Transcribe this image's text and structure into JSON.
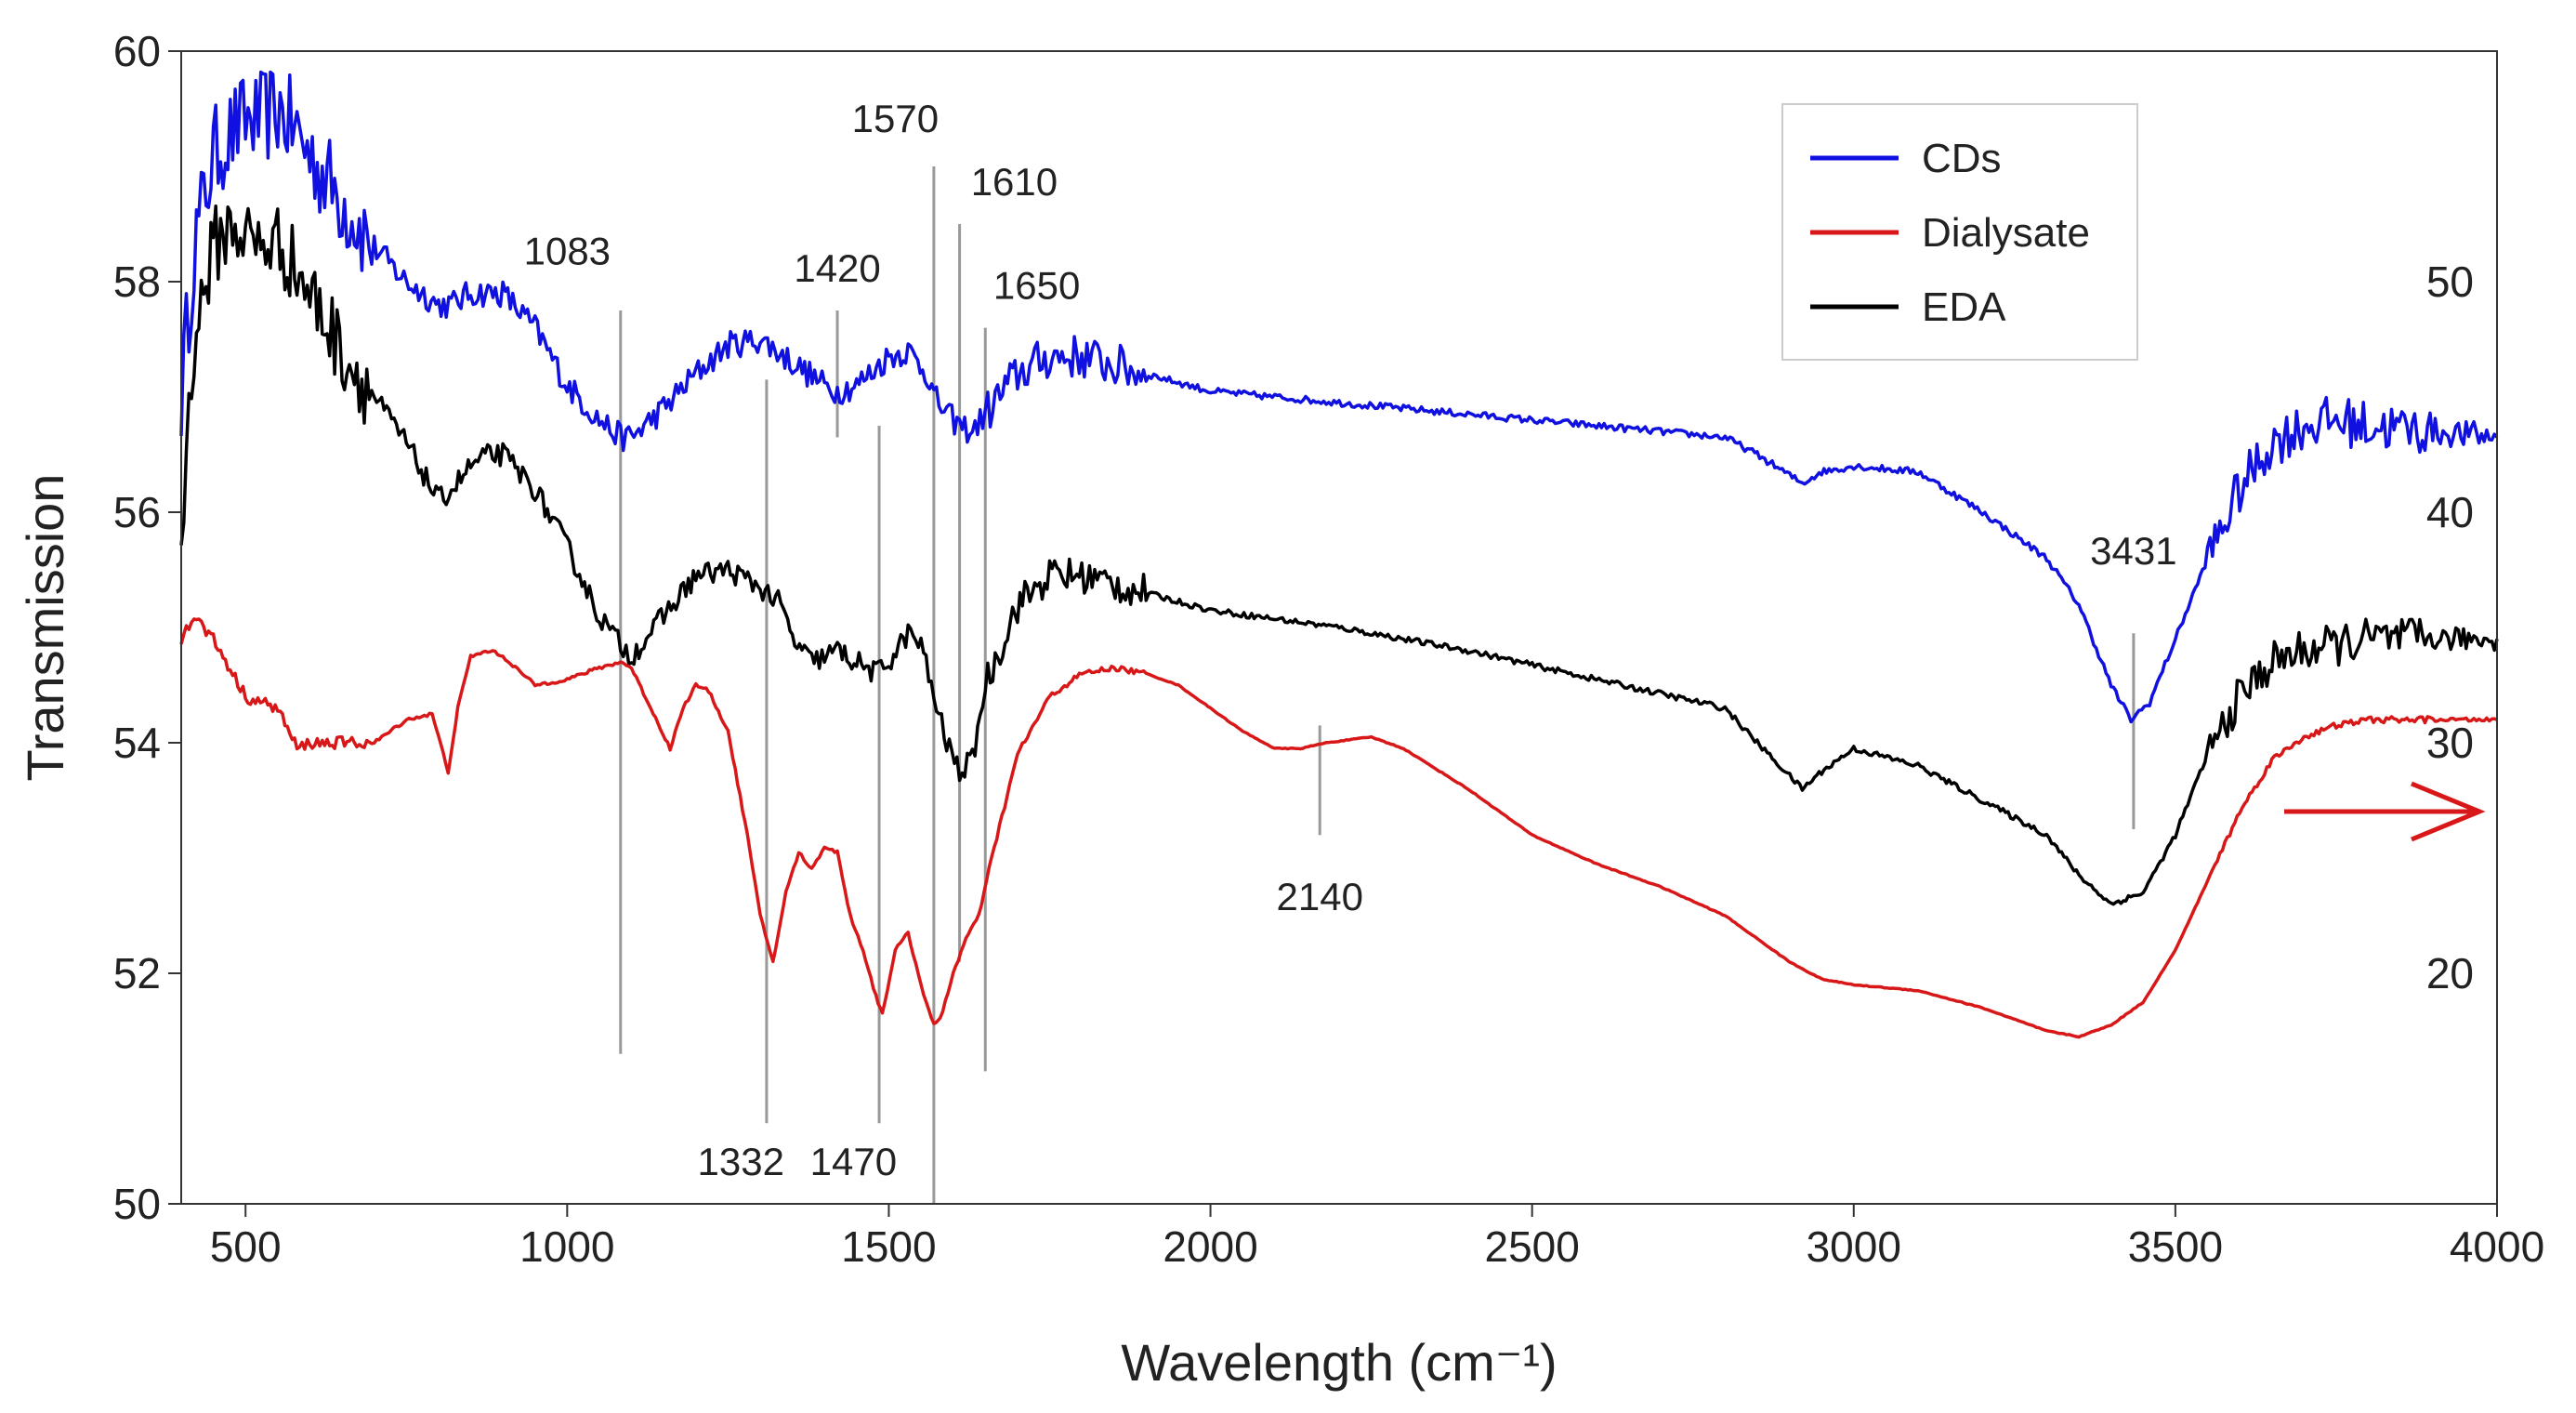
{
  "chart_data": {
    "type": "line",
    "title": "",
    "xlabel": "Wavelength (cm⁻¹)",
    "ylabel": "Transmission",
    "xlim": [
      400,
      4000
    ],
    "ylim": [
      50,
      60
    ],
    "y2lim": [
      10,
      60
    ],
    "x_ticks": [
      500,
      1000,
      1500,
      2000,
      2500,
      3000,
      3500,
      4000
    ],
    "y_ticks": [
      50,
      52,
      54,
      56,
      58,
      60
    ],
    "y2_ticks": [
      20,
      30,
      40,
      50
    ],
    "grid": false,
    "legend_position": "top-right",
    "legend": [
      "CDs",
      "Dialysate",
      "EDA"
    ],
    "colors": {
      "CDs": "#1010e0",
      "Dialysate": "#d81818",
      "EDA": "#000000",
      "marker": "#999999",
      "right_axis_arrow": "#d81818"
    },
    "series": [
      {
        "name": "CDs",
        "axis": "left",
        "noise": 0.12,
        "x": [
          400,
          420,
          450,
          480,
          500,
          520,
          550,
          580,
          600,
          650,
          700,
          750,
          800,
          820,
          850,
          900,
          950,
          1000,
          1050,
          1083,
          1100,
          1150,
          1200,
          1250,
          1300,
          1350,
          1400,
          1420,
          1450,
          1500,
          1530,
          1560,
          1570,
          1590,
          1610,
          1630,
          1650,
          1700,
          1750,
          1800,
          1900,
          2000,
          2200,
          2400,
          2600,
          2800,
          2850,
          2920,
          2950,
          3000,
          3100,
          3200,
          3300,
          3350,
          3400,
          3431,
          3460,
          3500,
          3550,
          3600,
          3650,
          3700,
          3750,
          3800,
          3900,
          4000
        ],
        "y": [
          57.0,
          58.3,
          59.1,
          59.3,
          59.4,
          59.4,
          59.5,
          59.3,
          59.1,
          58.7,
          58.3,
          58.0,
          57.8,
          57.8,
          57.9,
          57.9,
          57.6,
          57.1,
          56.8,
          56.65,
          56.65,
          56.9,
          57.2,
          57.45,
          57.5,
          57.3,
          57.1,
          57.05,
          57.1,
          57.35,
          57.4,
          57.2,
          57.0,
          56.85,
          56.75,
          56.7,
          56.85,
          57.2,
          57.35,
          57.35,
          57.2,
          57.05,
          56.95,
          56.85,
          56.75,
          56.65,
          56.5,
          56.25,
          56.35,
          56.4,
          56.35,
          56.0,
          55.6,
          55.2,
          54.5,
          54.2,
          54.35,
          54.9,
          55.6,
          56.2,
          56.6,
          56.75,
          56.8,
          56.75,
          56.7,
          56.65
        ]
      },
      {
        "name": "EDA",
        "axis": "left",
        "noise": 0.1,
        "x": [
          400,
          420,
          450,
          480,
          500,
          520,
          550,
          580,
          600,
          650,
          700,
          750,
          800,
          820,
          850,
          880,
          900,
          950,
          1000,
          1050,
          1083,
          1100,
          1150,
          1200,
          1250,
          1300,
          1332,
          1350,
          1380,
          1400,
          1420,
          1450,
          1480,
          1500,
          1530,
          1550,
          1570,
          1590,
          1610,
          1630,
          1650,
          1700,
          1750,
          1800,
          1900,
          2000,
          2200,
          2400,
          2600,
          2800,
          2850,
          2920,
          2950,
          3000,
          3100,
          3200,
          3300,
          3350,
          3400,
          3450,
          3500,
          3550,
          3600,
          3650,
          3700,
          3750,
          3800,
          3900,
          4000
        ],
        "y": [
          55.8,
          57.5,
          58.3,
          58.5,
          58.4,
          58.3,
          58.35,
          58.1,
          57.9,
          57.4,
          57.0,
          56.6,
          56.1,
          56.2,
          56.4,
          56.5,
          56.5,
          56.2,
          55.7,
          55.1,
          54.85,
          54.75,
          55.1,
          55.45,
          55.5,
          55.35,
          55.2,
          54.9,
          54.7,
          54.75,
          54.8,
          54.7,
          54.6,
          54.7,
          54.95,
          54.85,
          54.4,
          54.0,
          53.75,
          53.85,
          54.5,
          55.2,
          55.45,
          55.45,
          55.3,
          55.15,
          55.0,
          54.8,
          54.55,
          54.3,
          54.0,
          53.6,
          53.75,
          53.95,
          53.8,
          53.5,
          53.2,
          52.85,
          52.6,
          52.7,
          53.2,
          53.9,
          54.4,
          54.7,
          54.8,
          54.85,
          54.9,
          54.9,
          54.9
        ]
      },
      {
        "name": "Dialysate",
        "axis": "left",
        "noise": 0.015,
        "x": [
          400,
          420,
          450,
          480,
          500,
          550,
          580,
          600,
          650,
          700,
          750,
          790,
          800,
          815,
          830,
          850,
          880,
          900,
          950,
          1000,
          1050,
          1083,
          1100,
          1130,
          1160,
          1180,
          1200,
          1220,
          1250,
          1280,
          1300,
          1320,
          1340,
          1360,
          1380,
          1400,
          1420,
          1440,
          1460,
          1480,
          1490,
          1510,
          1530,
          1550,
          1570,
          1580,
          1600,
          1620,
          1640,
          1660,
          1700,
          1750,
          1800,
          1850,
          1900,
          1950,
          2000,
          2050,
          2100,
          2140,
          2180,
          2250,
          2300,
          2400,
          2500,
          2600,
          2700,
          2800,
          2850,
          2900,
          2950,
          3000,
          3100,
          3200,
          3300,
          3350,
          3400,
          3450,
          3500,
          3550,
          3600,
          3650,
          3700,
          3750,
          3800,
          3900,
          4000
        ],
        "y": [
          54.9,
          55.1,
          54.9,
          54.6,
          54.4,
          54.3,
          53.95,
          54.0,
          54.0,
          54.0,
          54.2,
          54.25,
          54.05,
          53.75,
          54.3,
          54.75,
          54.8,
          54.75,
          54.5,
          54.55,
          54.65,
          54.7,
          54.65,
          54.3,
          53.95,
          54.3,
          54.5,
          54.45,
          54.1,
          53.2,
          52.5,
          52.1,
          52.7,
          53.05,
          52.9,
          53.1,
          53.05,
          52.5,
          52.2,
          51.8,
          51.65,
          52.2,
          52.35,
          51.9,
          51.55,
          51.6,
          52.0,
          52.3,
          52.5,
          53.0,
          53.9,
          54.4,
          54.6,
          54.65,
          54.6,
          54.5,
          54.3,
          54.1,
          53.95,
          53.95,
          54.0,
          54.05,
          53.95,
          53.6,
          53.2,
          52.95,
          52.75,
          52.5,
          52.3,
          52.1,
          51.95,
          51.9,
          51.85,
          51.7,
          51.5,
          51.45,
          51.55,
          51.75,
          52.2,
          52.8,
          53.4,
          53.85,
          54.05,
          54.15,
          54.2,
          54.2,
          54.2
        ]
      }
    ],
    "annotations": [
      {
        "text": "1083",
        "x": 1083,
        "y1": 51.3,
        "y2": 57.75,
        "label_y": 58.15,
        "label_x": 1000
      },
      {
        "text": "1332",
        "x": 1310,
        "y1": 50.7,
        "y2": 57.15,
        "label_y": 50.25,
        "label_x": 1270
      },
      {
        "text": "1420",
        "x": 1420,
        "y1": 56.65,
        "y2": 57.75,
        "label_y": 58.0,
        "label_x": 1420
      },
      {
        "text": "1470",
        "x": 1485,
        "y1": 50.7,
        "y2": 56.75,
        "label_y": 50.25,
        "label_x": 1445
      },
      {
        "text": "1570",
        "x": 1570,
        "y1": 50.0,
        "y2": 59.0,
        "label_y": 59.3,
        "label_x": 1510
      },
      {
        "text": "1610",
        "x": 1610,
        "y1": 52.1,
        "y2": 58.5,
        "label_y": 58.75,
        "label_x": 1695
      },
      {
        "text": "1650",
        "x": 1650,
        "y1": 51.15,
        "y2": 57.6,
        "label_y": 57.85,
        "label_x": 1730
      },
      {
        "text": "2140",
        "x": 2170,
        "y1": 53.2,
        "y2": 54.15,
        "label_y": 52.55,
        "label_x": 2170
      },
      {
        "text": "3431",
        "x": 3435,
        "y1": 53.25,
        "y2": 54.95,
        "label_y": 55.55,
        "label_x": 3435
      }
    ]
  }
}
